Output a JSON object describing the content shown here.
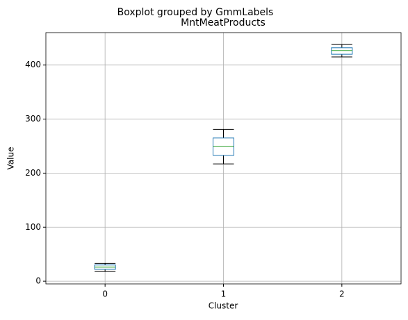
{
  "chart_data": {
    "type": "box",
    "title": "Boxplot grouped by GmmLabels",
    "subtitle": "MntMeatProducts",
    "x_label": "Cluster",
    "y_label": "Value",
    "categories": [
      "0",
      "1",
      "2"
    ],
    "boxes": [
      {
        "whislo": 18,
        "q1": 22,
        "med": 26,
        "q3": 30,
        "whishi": 33
      },
      {
        "whislo": 217,
        "q1": 233,
        "med": 249,
        "q3": 265,
        "whishi": 281
      },
      {
        "whislo": 415,
        "q1": 420,
        "med": 427,
        "q3": 432,
        "whishi": 438
      }
    ],
    "box_color": "#1f77b4",
    "median_color": "#2ca02c",
    "whisker_color": "#000000",
    "ylim": [
      -5,
      460
    ],
    "yticks": [
      0,
      100,
      200,
      300,
      400
    ],
    "grid": true
  }
}
